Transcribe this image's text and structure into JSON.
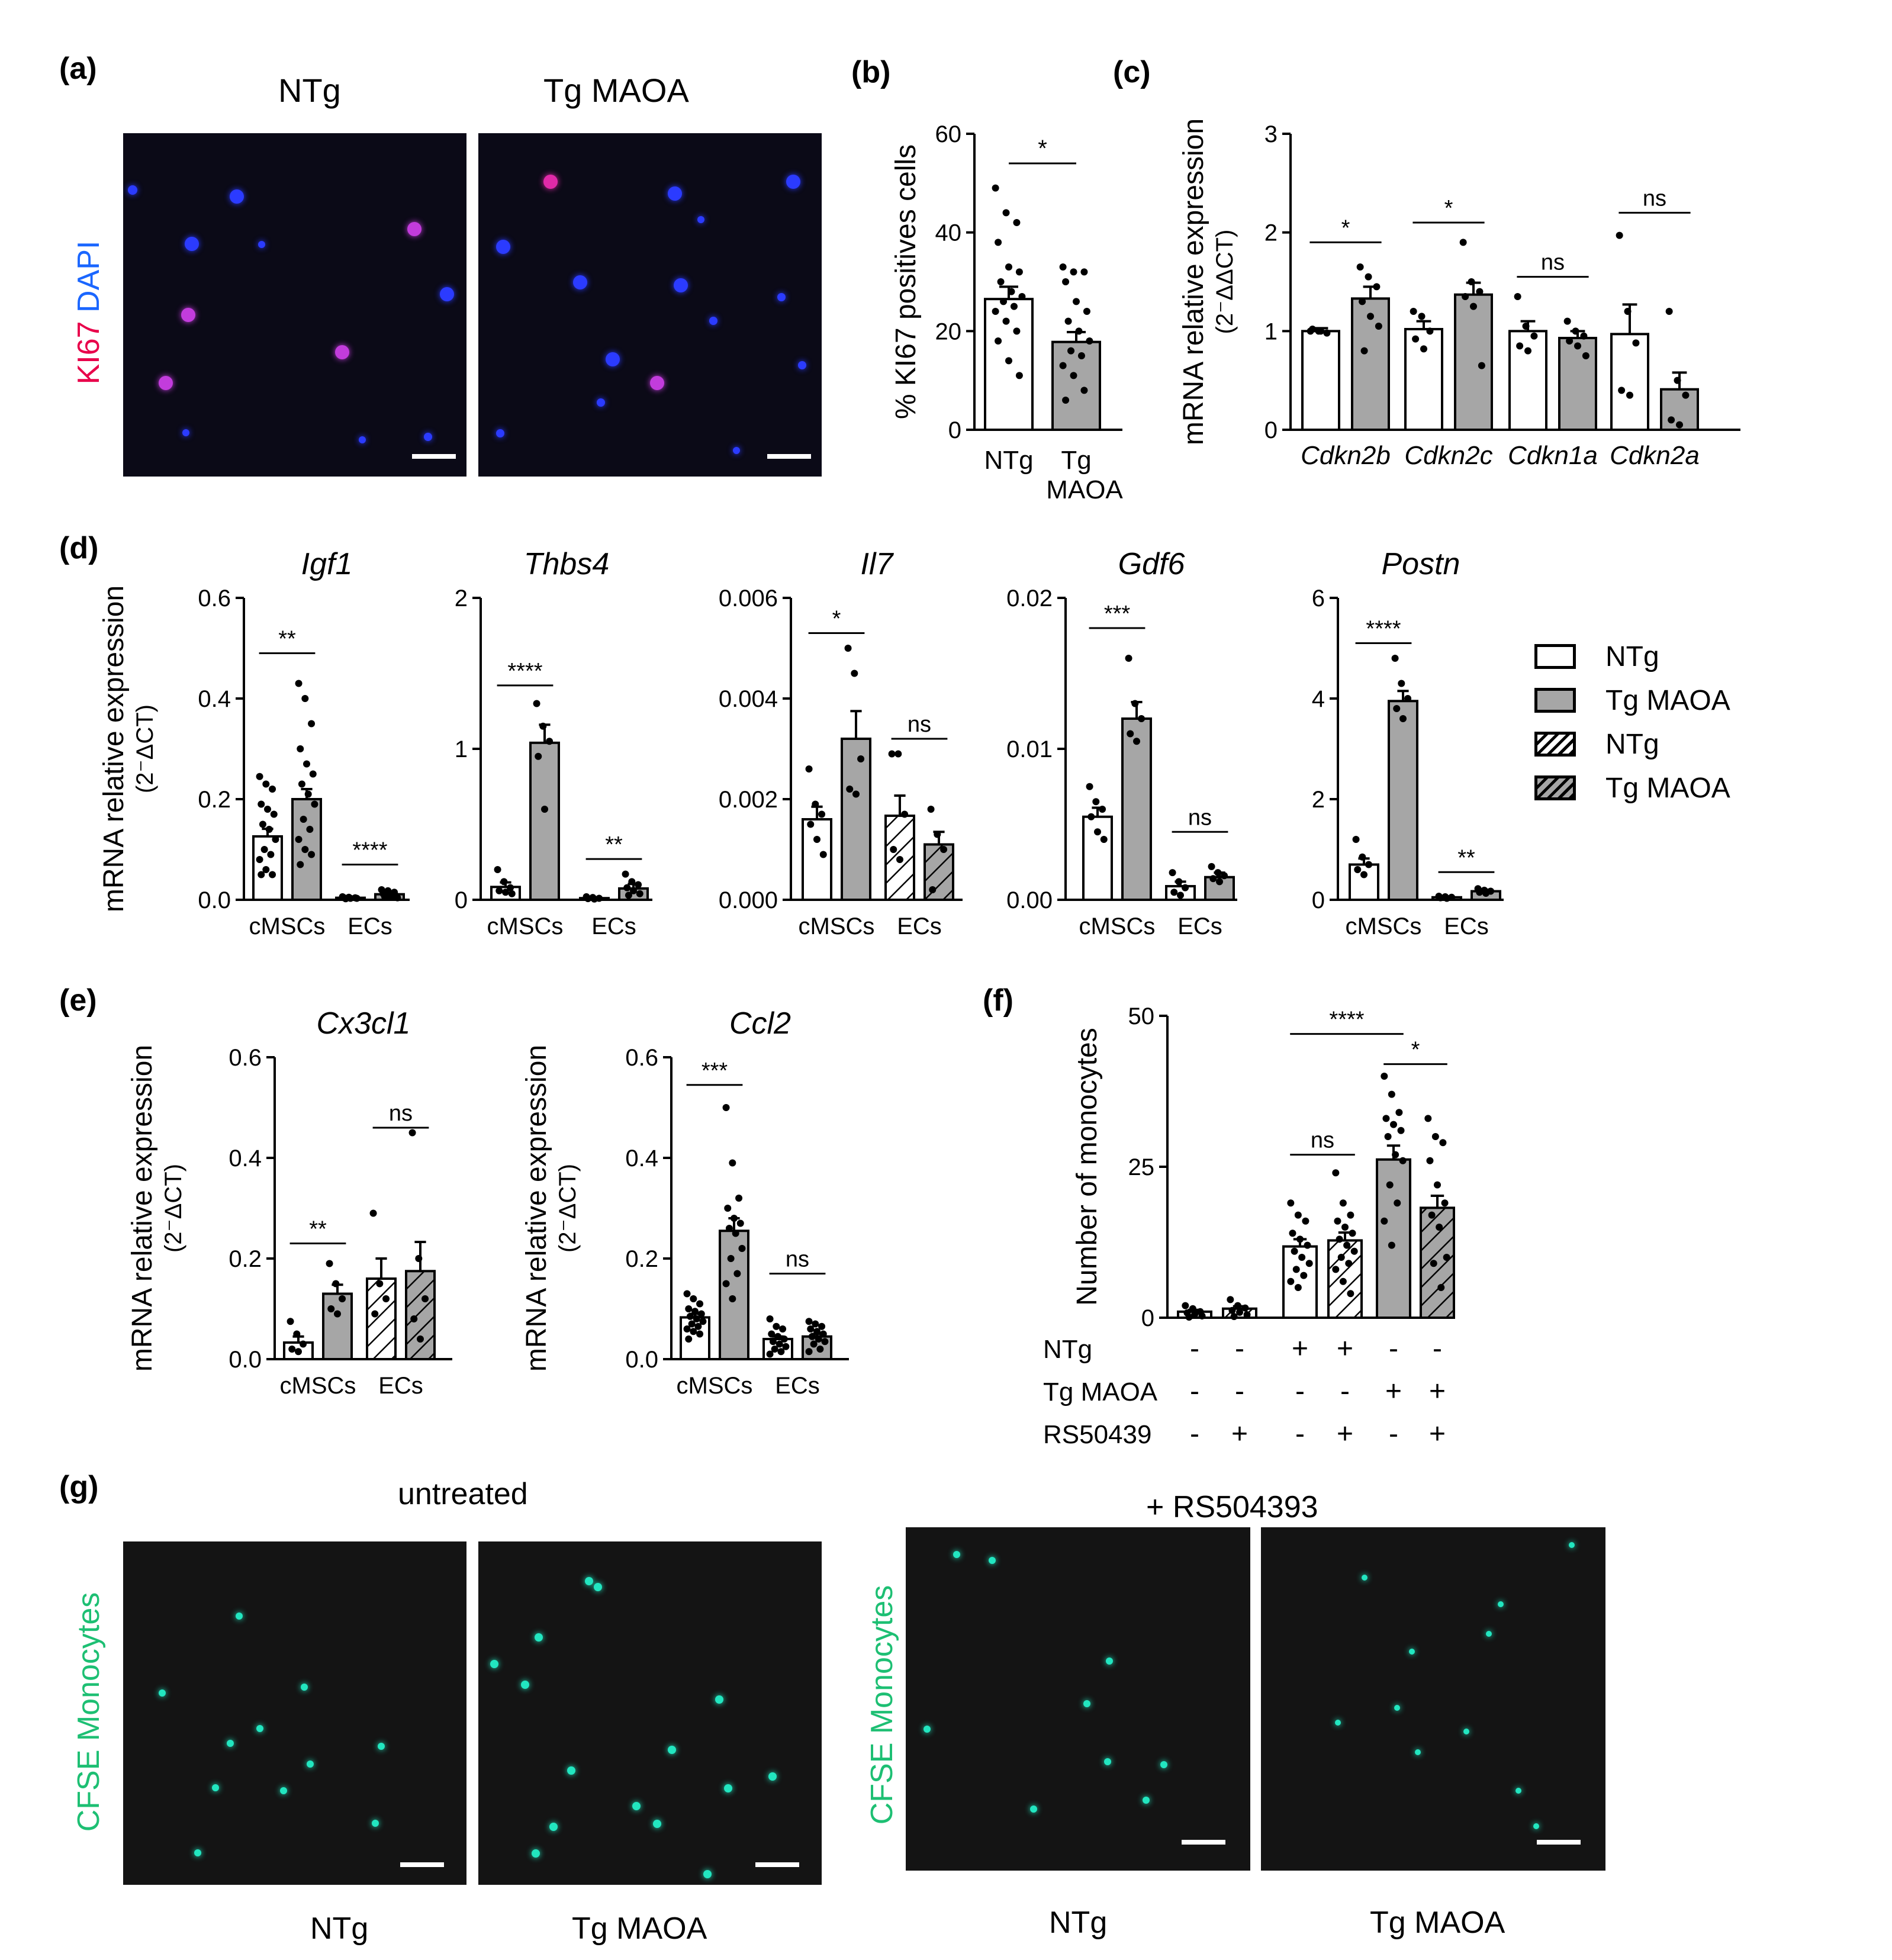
{
  "panel_letters": {
    "a": "(a)",
    "b": "(b)",
    "c": "(c)",
    "d": "(d)",
    "e": "(e)",
    "f": "(f)",
    "g": "(g)"
  },
  "panel_a": {
    "col_titles": [
      "NTg",
      "Tg MAOA"
    ],
    "ylabel_ki67": "KI67",
    "ylabel_dapi": "DAPI",
    "colors": {
      "ki67": "#e8004a",
      "dapi": "#1a66ff",
      "ki67_cell": "#c23cdc",
      "dapi_cell": "#2b3bff"
    }
  },
  "panel_g": {
    "titles": [
      "untreated",
      "+ RS504393"
    ],
    "ylabel": "CFSE Monocytes",
    "col_labels": [
      "NTg",
      "Tg MAOA",
      "NTg",
      "Tg MAOA"
    ],
    "colors": {
      "label": "#1dbf73",
      "cell": "#22e6c0"
    }
  },
  "legend": {
    "items": [
      {
        "label": "NTg",
        "fill": "white",
        "hatch": false
      },
      {
        "label": "Tg MAOA",
        "fill": "gray",
        "hatch": false
      },
      {
        "label": "NTg",
        "fill": "white",
        "hatch": true
      },
      {
        "label": "Tg MAOA",
        "fill": "gray",
        "hatch": true
      }
    ]
  },
  "colors": {
    "gray_bar": "#a6a6a6",
    "white_bar": "#ffffff",
    "axis": "#000000"
  },
  "chart_data": [
    {
      "id": "b",
      "type": "bar",
      "ylabel": "% KI67 positives cells",
      "ylim": [
        0,
        60
      ],
      "yticks": [
        0,
        20,
        40,
        60
      ],
      "categories": [
        "NTg",
        "Tg MAOA"
      ],
      "category_lines": [
        [
          "NTg"
        ],
        [
          "Tg",
          "MAOA"
        ]
      ],
      "values": [
        26.5,
        17.8
      ],
      "errors": [
        2.5,
        2.0
      ],
      "fills": [
        "white",
        "gray"
      ],
      "hatch": [
        false,
        false
      ],
      "points": [
        [
          49,
          44,
          42,
          38,
          33,
          32,
          30,
          28,
          27,
          26,
          25,
          24,
          22,
          20,
          18,
          14,
          11
        ],
        [
          33,
          32,
          32,
          30,
          26,
          24,
          22,
          20,
          18,
          16,
          15,
          13,
          11,
          8,
          6
        ]
      ],
      "significance": [
        {
          "from": 0,
          "to": 1,
          "label": "*",
          "y": 54
        }
      ]
    },
    {
      "id": "c",
      "type": "bar",
      "ylabel": "mRNA relative expression",
      "ylabel2": "(2⁻ΔΔCT)",
      "ylim": [
        0,
        3
      ],
      "yticks": [
        0,
        1,
        2,
        3
      ],
      "group_labels": [
        "Cdkn2b",
        "Cdkn2c",
        "Cdkn1a",
        "Cdkn2a"
      ],
      "series": [
        {
          "name": "NTg",
          "values": [
            1.0,
            1.02,
            1.0,
            0.97
          ],
          "errors": [
            0.03,
            0.08,
            0.1,
            0.3
          ]
        },
        {
          "name": "Tg MAOA",
          "values": [
            1.33,
            1.37,
            0.93,
            0.41
          ],
          "errors": [
            0.12,
            0.12,
            0.07,
            0.17
          ]
        }
      ],
      "points": [
        [
          [
            1.0,
            1.0,
            0.98,
            1.02,
            1.0
          ],
          [
            1.65,
            1.55,
            1.45,
            1.3,
            1.15,
            1.05,
            0.8
          ]
        ],
        [
          [
            1.2,
            1.15,
            1.0,
            0.92,
            0.82
          ],
          [
            1.9,
            1.5,
            1.4,
            1.35,
            1.25,
            0.65
          ]
        ],
        [
          [
            1.35,
            1.05,
            0.95,
            0.85,
            0.8
          ],
          [
            1.1,
            1.0,
            0.95,
            0.9,
            0.85,
            0.75
          ]
        ],
        [
          [
            1.97,
            1.2,
            0.88,
            0.4,
            0.35
          ],
          [
            1.2,
            0.5,
            0.35,
            0.1,
            0.05
          ]
        ]
      ],
      "significance": [
        {
          "group": 0,
          "label": "*",
          "y": 1.9
        },
        {
          "group": 1,
          "label": "*",
          "y": 2.1
        },
        {
          "group": 2,
          "label": "ns",
          "y": 1.55
        },
        {
          "group": 3,
          "label": "ns",
          "y": 2.2
        }
      ]
    },
    {
      "id": "d1",
      "type": "bar",
      "title": "Igf1",
      "ylabel": "mRNA relative expression",
      "ylabel2": "(2⁻ΔCT)",
      "ylim": [
        0,
        0.6
      ],
      "yticks": [
        "0.0",
        "0.2",
        "0.4",
        "0.6"
      ],
      "group_labels": [
        "cMSCs",
        "ECs"
      ],
      "series": [
        {
          "name": "NTg",
          "values": [
            0.126,
            0.004
          ],
          "errors": [
            0.015,
            0.001
          ]
        },
        {
          "name": "Tg MAOA",
          "values": [
            0.2,
            0.011
          ],
          "errors": [
            0.02,
            0.002
          ]
        }
      ],
      "points": [
        [
          [
            0.245,
            0.23,
            0.22,
            0.19,
            0.18,
            0.17,
            0.15,
            0.14,
            0.12,
            0.1,
            0.09,
            0.08,
            0.06,
            0.05,
            0.05
          ],
          [
            0.43,
            0.4,
            0.35,
            0.3,
            0.27,
            0.25,
            0.23,
            0.21,
            0.19,
            0.16,
            0.14,
            0.12,
            0.1,
            0.09,
            0.07
          ]
        ],
        [
          [
            0.006,
            0.005,
            0.004,
            0.004,
            0.003,
            0.003,
            0.002
          ],
          [
            0.02,
            0.018,
            0.015,
            0.012,
            0.01,
            0.008,
            0.006,
            0.005,
            0.004
          ]
        ]
      ],
      "significance": [
        {
          "group": 0,
          "label": "**",
          "y": 0.49
        },
        {
          "group": 1,
          "label": "****",
          "y": 0.07
        }
      ]
    },
    {
      "id": "d2",
      "type": "bar",
      "title": "Thbs4",
      "ylim": [
        0,
        2
      ],
      "yticks": [
        "0",
        "1",
        "2"
      ],
      "group_labels": [
        "cMSCs",
        "ECs"
      ],
      "series": [
        {
          "name": "NTg",
          "values": [
            0.085,
            0.011
          ],
          "errors": [
            0.03,
            0.003
          ]
        },
        {
          "name": "Tg MAOA",
          "values": [
            1.04,
            0.075
          ],
          "errors": [
            0.12,
            0.03
          ]
        }
      ],
      "points": [
        [
          [
            0.2,
            0.12,
            0.08,
            0.06,
            0.05,
            0.04
          ],
          [
            1.3,
            1.15,
            1.05,
            0.95,
            0.6
          ]
        ],
        [
          [
            0.02,
            0.015,
            0.01,
            0.008,
            0.005
          ],
          [
            0.17,
            0.12,
            0.1,
            0.08,
            0.06,
            0.04,
            0.03
          ]
        ]
      ],
      "significance": [
        {
          "group": 0,
          "label": "****",
          "y": 1.42
        },
        {
          "group": 1,
          "label": "**",
          "y": 0.27
        }
      ]
    },
    {
      "id": "d3",
      "type": "bar",
      "title": "Il7",
      "ylim": [
        0,
        0.006
      ],
      "yticks": [
        "0.000",
        "0.002",
        "0.004",
        "0.006"
      ],
      "group_labels": [
        "cMSCs",
        "ECs"
      ],
      "series": [
        {
          "name": "NTg",
          "values": [
            0.0016,
            0.00167
          ],
          "errors": [
            0.00025,
            0.0004
          ]
        },
        {
          "name": "Tg MAOA",
          "values": [
            0.0032,
            0.0011
          ],
          "errors": [
            0.00055,
            0.00025
          ]
        }
      ],
      "points": [
        [
          [
            0.0026,
            0.0019,
            0.0017,
            0.0015,
            0.0012,
            0.0009
          ],
          [
            0.005,
            0.0045,
            0.0028,
            0.0022,
            0.0021
          ]
        ],
        [
          [
            0.0029,
            0.0029,
            0.0017,
            0.001,
            0.0008
          ],
          [
            0.0018,
            0.0013,
            0.001,
            0.0002
          ]
        ]
      ],
      "significance": [
        {
          "group": 0,
          "label": "*",
          "y": 0.0053
        },
        {
          "group": 1,
          "label": "ns",
          "y": 0.0032
        }
      ]
    },
    {
      "id": "d4",
      "type": "bar",
      "title": "Gdf6",
      "ylim": [
        0,
        0.02
      ],
      "yticks": [
        "0.00",
        "0.01",
        "0.02"
      ],
      "group_labels": [
        "cMSCs",
        "ECs"
      ],
      "series": [
        {
          "name": "NTg",
          "values": [
            0.0055,
            0.0009
          ],
          "errors": [
            0.0006,
            0.0003
          ]
        },
        {
          "name": "Tg MAOA",
          "values": [
            0.012,
            0.0015
          ],
          "errors": [
            0.0011,
            0.0003
          ]
        }
      ],
      "points": [
        [
          [
            0.0075,
            0.0065,
            0.006,
            0.0055,
            0.0045,
            0.004
          ],
          [
            0.016,
            0.013,
            0.012,
            0.011,
            0.0105
          ]
        ],
        [
          [
            0.0018,
            0.0012,
            0.0008,
            0.0005,
            0.0003
          ],
          [
            0.0022,
            0.0018,
            0.0016,
            0.0014,
            0.0012
          ]
        ]
      ],
      "significance": [
        {
          "group": 0,
          "label": "***",
          "y": 0.018
        },
        {
          "group": 1,
          "label": "ns",
          "y": 0.0045
        }
      ]
    },
    {
      "id": "d5",
      "type": "bar",
      "title": "Postn",
      "ylim": [
        0,
        6
      ],
      "yticks": [
        "0",
        "2",
        "4",
        "6"
      ],
      "group_labels": [
        "cMSCs",
        "ECs"
      ],
      "series": [
        {
          "name": "NTg",
          "values": [
            0.7,
            0.05
          ],
          "errors": [
            0.12,
            0.01
          ]
        },
        {
          "name": "Tg MAOA",
          "values": [
            3.95,
            0.17
          ],
          "errors": [
            0.2,
            0.03
          ]
        }
      ],
      "points": [
        [
          [
            1.2,
            0.85,
            0.7,
            0.6,
            0.5
          ],
          [
            4.8,
            4.3,
            4.0,
            3.8,
            3.6
          ]
        ],
        [
          [
            0.07,
            0.06,
            0.05,
            0.04,
            0.03
          ],
          [
            0.22,
            0.19,
            0.17,
            0.15,
            0.13
          ]
        ]
      ],
      "significance": [
        {
          "group": 0,
          "label": "****",
          "y": 5.1
        },
        {
          "group": 1,
          "label": "**",
          "y": 0.55
        }
      ]
    },
    {
      "id": "e1",
      "type": "bar",
      "title": "Cx3cl1",
      "ylabel": "mRNA relative expression",
      "ylabel2": "(2⁻ΔCT)",
      "ylim": [
        0,
        0.6
      ],
      "yticks": [
        "0.0",
        "0.2",
        "0.4",
        "0.6"
      ],
      "group_labels": [
        "cMSCs",
        "ECs"
      ],
      "series": [
        {
          "name": "NTg",
          "values": [
            0.033,
            0.16
          ],
          "errors": [
            0.012,
            0.04
          ]
        },
        {
          "name": "Tg MAOA",
          "values": [
            0.13,
            0.175
          ],
          "errors": [
            0.018,
            0.058
          ]
        }
      ],
      "points": [
        [
          [
            0.075,
            0.05,
            0.03,
            0.02,
            0.015
          ],
          [
            0.19,
            0.15,
            0.12,
            0.1,
            0.09
          ]
        ],
        [
          [
            0.29,
            0.15,
            0.12,
            0.09
          ],
          [
            0.45,
            0.2,
            0.12,
            0.08,
            0.04
          ]
        ]
      ],
      "significance": [
        {
          "group": 0,
          "label": "**",
          "y": 0.23
        },
        {
          "group": 1,
          "label": "ns",
          "y": 0.46
        }
      ]
    },
    {
      "id": "e2",
      "type": "bar",
      "title": "Ccl2",
      "ylabel": "mRNA relative expression",
      "ylabel2": "(2⁻ΔCT)",
      "ylim": [
        0,
        0.6
      ],
      "yticks": [
        "0.0",
        "0.2",
        "0.4",
        "0.6"
      ],
      "group_labels": [
        "cMSCs",
        "ECs"
      ],
      "series": [
        {
          "name": "NTg",
          "values": [
            0.083,
            0.04
          ],
          "errors": [
            0.007,
            0.005
          ]
        },
        {
          "name": "Tg MAOA",
          "values": [
            0.255,
            0.045
          ],
          "errors": [
            0.025,
            0.005
          ]
        }
      ],
      "points": [
        [
          [
            0.13,
            0.12,
            0.11,
            0.1,
            0.095,
            0.09,
            0.085,
            0.08,
            0.075,
            0.07,
            0.065,
            0.06,
            0.055,
            0.05,
            0.04
          ],
          [
            0.5,
            0.39,
            0.32,
            0.3,
            0.28,
            0.27,
            0.26,
            0.25,
            0.22,
            0.2,
            0.17,
            0.15,
            0.12
          ]
        ],
        [
          [
            0.08,
            0.065,
            0.06,
            0.05,
            0.045,
            0.04,
            0.035,
            0.03,
            0.025,
            0.02,
            0.015,
            0.01
          ],
          [
            0.075,
            0.07,
            0.065,
            0.06,
            0.055,
            0.05,
            0.045,
            0.04,
            0.035,
            0.03,
            0.02,
            0.015
          ]
        ]
      ],
      "significance": [
        {
          "group": 0,
          "label": "***",
          "y": 0.545
        },
        {
          "group": 1,
          "label": "ns",
          "y": 0.17
        }
      ]
    },
    {
      "id": "f",
      "type": "bar",
      "ylabel": "Number of monocytes",
      "ylim": [
        0,
        50
      ],
      "yticks": [
        "0",
        "25",
        "50"
      ],
      "values": [
        1.0,
        1.5,
        11.8,
        12.8,
        26.2,
        18.2
      ],
      "errors": [
        0.3,
        0.4,
        1.2,
        1.3,
        2.3,
        2.0
      ],
      "fills": [
        "white",
        "white",
        "white",
        "white",
        "gray",
        "gray"
      ],
      "hatch": [
        false,
        true,
        false,
        true,
        false,
        true
      ],
      "points": [
        [
          2,
          1.5,
          1,
          0.8,
          0.5,
          0.3,
          0.1
        ],
        [
          3,
          2,
          1.6,
          1.2,
          0.9,
          0.5,
          0.2
        ],
        [
          19,
          17,
          16,
          14,
          13,
          12,
          11,
          10,
          9,
          8,
          7,
          6,
          5
        ],
        [
          24,
          19,
          17,
          16,
          15,
          14,
          13,
          12,
          11,
          10,
          9,
          8,
          6,
          4
        ],
        [
          40,
          37,
          34,
          33,
          32,
          31,
          30,
          27,
          26,
          22,
          19,
          16,
          12
        ],
        [
          33,
          30,
          29,
          26,
          22,
          19,
          17,
          15,
          10,
          9,
          5
        ]
      ],
      "significance": [
        {
          "from": 2,
          "to": 4,
          "label": "****",
          "y": 47
        },
        {
          "from": 4,
          "to": 5,
          "label": "*",
          "y": 42
        },
        {
          "from": 2,
          "to": 3,
          "label": "ns",
          "y": 27
        }
      ],
      "factor_table": [
        {
          "name": "NTg",
          "marks": [
            "-",
            "-",
            "+",
            "+",
            "-",
            "-"
          ]
        },
        {
          "name": "Tg MAOA",
          "marks": [
            "-",
            "-",
            "-",
            "-",
            "+",
            "+"
          ]
        },
        {
          "name": "RS50439",
          "marks": [
            "-",
            "+",
            "-",
            "+",
            "-",
            "+"
          ]
        }
      ]
    }
  ]
}
